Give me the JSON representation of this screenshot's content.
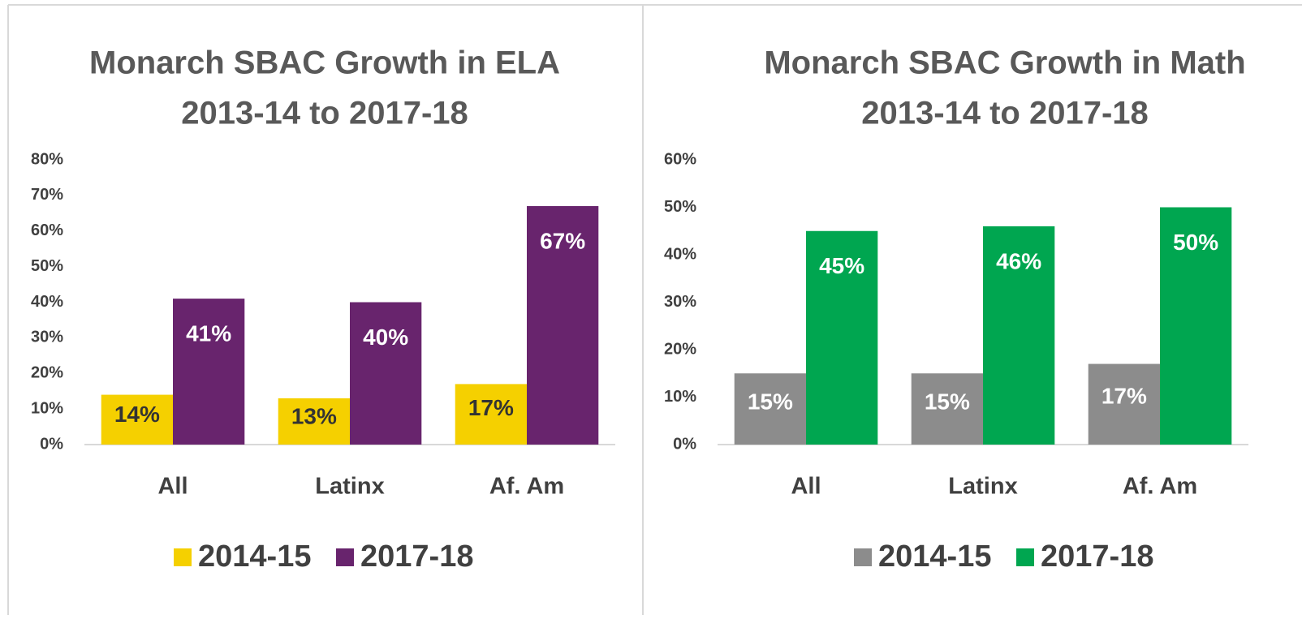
{
  "chart_data": [
    {
      "type": "bar",
      "title": "Monarch SBAC Growth in ELA",
      "subtitle": "2013-14 to 2017-18",
      "categories": [
        "All",
        "Latinx",
        "Af. Am"
      ],
      "series": [
        {
          "name": "2014-15",
          "color": "#f5d000",
          "label_color": "#333333",
          "values": [
            14,
            13,
            17
          ],
          "value_labels": [
            "14%",
            "13%",
            "17%"
          ]
        },
        {
          "name": "2017-18",
          "color": "#68246d",
          "label_color": "#ffffff",
          "values": [
            41,
            40,
            67
          ],
          "value_labels": [
            "41%",
            "40%",
            "67%"
          ]
        }
      ],
      "ylim": [
        0,
        80
      ],
      "yticks": [
        {
          "value": 0,
          "label": "0%"
        },
        {
          "value": 10,
          "label": "10%"
        },
        {
          "value": 20,
          "label": "20%"
        },
        {
          "value": 30,
          "label": "30%"
        },
        {
          "value": 40,
          "label": "40%"
        },
        {
          "value": 50,
          "label": "50%"
        },
        {
          "value": 60,
          "label": "60%"
        },
        {
          "value": 70,
          "label": "70%"
        },
        {
          "value": 80,
          "label": "80%"
        }
      ],
      "legend": "bottom"
    },
    {
      "type": "bar",
      "title": "Monarch SBAC Growth in Math",
      "subtitle": "2013-14 to 2017-18",
      "categories": [
        "All",
        "Latinx",
        "Af. Am"
      ],
      "series": [
        {
          "name": "2014-15",
          "color": "#8c8c8c",
          "label_color": "#ffffff",
          "values": [
            15,
            15,
            17
          ],
          "value_labels": [
            "15%",
            "15%",
            "17%"
          ]
        },
        {
          "name": "2017-18",
          "color": "#00a650",
          "label_color": "#ffffff",
          "values": [
            45,
            46,
            50
          ],
          "value_labels": [
            "45%",
            "46%",
            "50%"
          ]
        }
      ],
      "ylim": [
        0,
        60
      ],
      "yticks": [
        {
          "value": 0,
          "label": "0%"
        },
        {
          "value": 10,
          "label": "10%"
        },
        {
          "value": 20,
          "label": "20%"
        },
        {
          "value": 30,
          "label": "30%"
        },
        {
          "value": 40,
          "label": "40%"
        },
        {
          "value": 50,
          "label": "50%"
        },
        {
          "value": 60,
          "label": "60%"
        }
      ],
      "legend": "bottom"
    }
  ]
}
